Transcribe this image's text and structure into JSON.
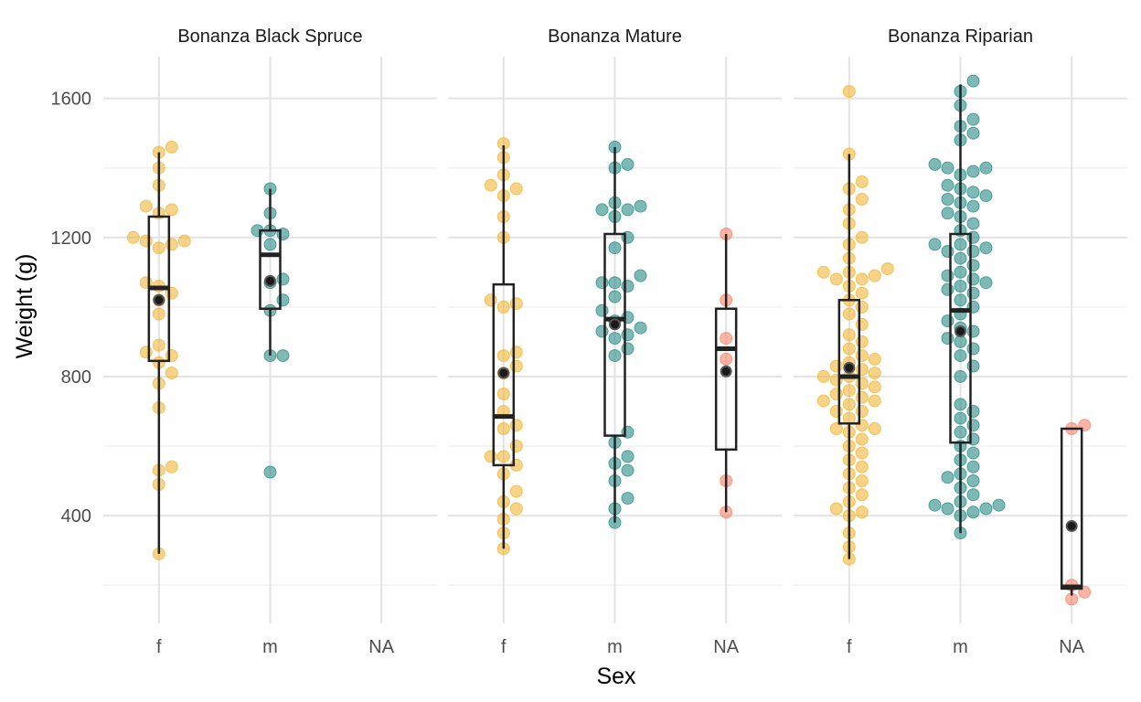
{
  "chart_data": {
    "type": "scatter",
    "subtype": "faceted box plot with jittered points and mean markers",
    "xlabel": "Sex",
    "ylabel": "Weight (g)",
    "ylim": [
      90,
      1720
    ],
    "yticks": [
      400,
      800,
      1200,
      1600
    ],
    "categories": [
      "f",
      "m",
      "NA"
    ],
    "grid": true,
    "legend": "none",
    "colors": {
      "f": "#f0b537",
      "m": "#2a8a85",
      "NA": "#f5836a",
      "box": "#222222",
      "mean": "#1a1a1a"
    },
    "panels": [
      {
        "title": "Bonanza Black Spruce",
        "groups": [
          {
            "sex": "f",
            "box": {
              "ymin": 290,
              "q1": 845,
              "median": 1055,
              "q3": 1260,
              "ymax": 1445
            },
            "mean": 1020,
            "points": [
              290,
              490,
              530,
              540,
              710,
              780,
              810,
              840,
              860,
              870,
              890,
              980,
              1020,
              1040,
              1060,
              1070,
              1170,
              1180,
              1190,
              1190,
              1200,
              1270,
              1280,
              1290,
              1350,
              1400,
              1445,
              1460
            ]
          },
          {
            "sex": "m",
            "box": {
              "ymin": 860,
              "q1": 995,
              "median": 1150,
              "q3": 1220,
              "ymax": 1340
            },
            "mean": 1075,
            "points": [
              525,
              860,
              860,
              990,
              1020,
              1070,
              1080,
              1180,
              1210,
              1220,
              1220,
              1270,
              1340
            ]
          }
        ]
      },
      {
        "title": "Bonanza Mature",
        "groups": [
          {
            "sex": "f",
            "box": {
              "ymin": 305,
              "q1": 545,
              "median": 685,
              "q3": 1065,
              "ymax": 1465
            },
            "mean": 810,
            "points": [
              305,
              350,
              390,
              420,
              440,
              470,
              520,
              545,
              570,
              570,
              600,
              650,
              660,
              700,
              750,
              810,
              830,
              860,
              870,
              1000,
              1010,
              1020,
              1200,
              1260,
              1320,
              1340,
              1350,
              1380,
              1430,
              1470
            ]
          },
          {
            "sex": "m",
            "box": {
              "ymin": 380,
              "q1": 630,
              "median": 965,
              "q3": 1210,
              "ymax": 1460
            },
            "mean": 950,
            "points": [
              380,
              420,
              450,
              500,
              530,
              550,
              570,
              610,
              640,
              860,
              880,
              910,
              920,
              930,
              940,
              960,
              970,
              990,
              1030,
              1060,
              1070,
              1070,
              1090,
              1170,
              1200,
              1260,
              1280,
              1280,
              1290,
              1300,
              1400,
              1410,
              1460
            ]
          },
          {
            "sex": "NA",
            "box": {
              "ymin": 410,
              "q1": 590,
              "median": 880,
              "q3": 995,
              "ymax": 1210
            },
            "mean": 815,
            "points": [
              410,
              500,
              850,
              910,
              1020,
              1210
            ]
          }
        ]
      },
      {
        "title": "Bonanza Riparian",
        "groups": [
          {
            "sex": "f",
            "box": {
              "ymin": 275,
              "q1": 665,
              "median": 800,
              "q3": 1020,
              "ymax": 1440
            },
            "mean": 825,
            "points": [
              275,
              310,
              350,
              400,
              410,
              420,
              440,
              460,
              480,
              500,
              520,
              540,
              560,
              580,
              600,
              620,
              640,
              650,
              650,
              660,
              680,
              700,
              700,
              720,
              730,
              730,
              740,
              750,
              760,
              770,
              780,
              790,
              800,
              800,
              810,
              820,
              830,
              840,
              850,
              860,
              880,
              900,
              920,
              950,
              980,
              1000,
              1020,
              1040,
              1060,
              1080,
              1080,
              1090,
              1100,
              1100,
              1110,
              1140,
              1180,
              1200,
              1240,
              1280,
              1310,
              1340,
              1360,
              1440,
              1620
            ]
          },
          {
            "sex": "m",
            "box": {
              "ymin": 350,
              "q1": 610,
              "median": 990,
              "q3": 1210,
              "ymax": 1640
            },
            "mean": 930,
            "points": [
              350,
              400,
              410,
              420,
              420,
              430,
              430,
              440,
              460,
              480,
              500,
              510,
              520,
              540,
              560,
              580,
              600,
              620,
              640,
              660,
              680,
              700,
              720,
              800,
              830,
              860,
              880,
              900,
              910,
              930,
              940,
              960,
              980,
              1000,
              1020,
              1040,
              1050,
              1060,
              1070,
              1080,
              1090,
              1100,
              1120,
              1140,
              1160,
              1160,
              1170,
              1180,
              1180,
              1200,
              1220,
              1240,
              1260,
              1270,
              1290,
              1300,
              1310,
              1320,
              1330,
              1340,
              1350,
              1380,
              1390,
              1400,
              1400,
              1410,
              1480,
              1500,
              1520,
              1540,
              1580,
              1620,
              1650
            ]
          },
          {
            "sex": "NA",
            "box": {
              "ymin": 170,
              "q1": 190,
              "median": 195,
              "q3": 650,
              "ymax": 650
            },
            "mean": 370,
            "points": [
              160,
              180,
              200,
              650,
              660
            ]
          }
        ]
      }
    ]
  }
}
